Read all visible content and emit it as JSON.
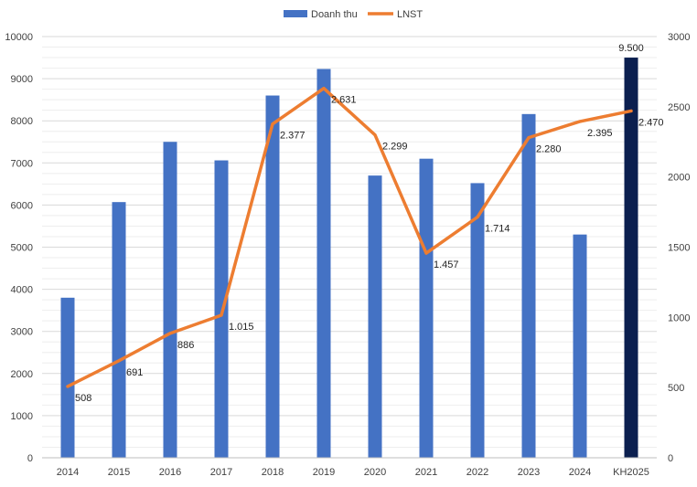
{
  "chart_data": {
    "type": "bar+line",
    "categories": [
      "2014",
      "2015",
      "2016",
      "2017",
      "2018",
      "2019",
      "2020",
      "2021",
      "2022",
      "2023",
      "2024",
      "KH2025"
    ],
    "series": [
      {
        "name": "Doanh thu",
        "type": "bar",
        "axis": "left",
        "values": [
          3800,
          6070,
          7500,
          7060,
          8600,
          9230,
          6700,
          7100,
          6520,
          8160,
          5300,
          9500
        ],
        "color": "#4472C4",
        "highlight_color": "#0B1F4F",
        "highlight_index": 11,
        "labels": [
          "",
          "",
          "",
          "",
          "",
          "",
          "",
          "",
          "",
          "",
          "",
          "9.500"
        ]
      },
      {
        "name": "LNST",
        "type": "line",
        "axis": "right",
        "values": [
          508,
          691,
          886,
          1015,
          2377,
          2631,
          2299,
          1457,
          1714,
          2280,
          2395,
          2470
        ],
        "color": "#ED7D31",
        "labels": [
          "508",
          "691",
          "886",
          "1.015",
          "2.377",
          "2.631",
          "2.299",
          "1.457",
          "1.714",
          "2.280",
          "2.395",
          "2.470"
        ]
      }
    ],
    "y_left": {
      "min": 0,
      "max": 10000,
      "ticks": [
        "0",
        "1000",
        "2000",
        "3000",
        "4000",
        "5000",
        "6000",
        "7000",
        "8000",
        "9000",
        "10000"
      ]
    },
    "y_right": {
      "min": 0,
      "max": 3000,
      "ticks": [
        "0",
        "500",
        "1000",
        "1500",
        "2000",
        "2500",
        "3000"
      ]
    },
    "grid": true,
    "legend": "top-center"
  }
}
